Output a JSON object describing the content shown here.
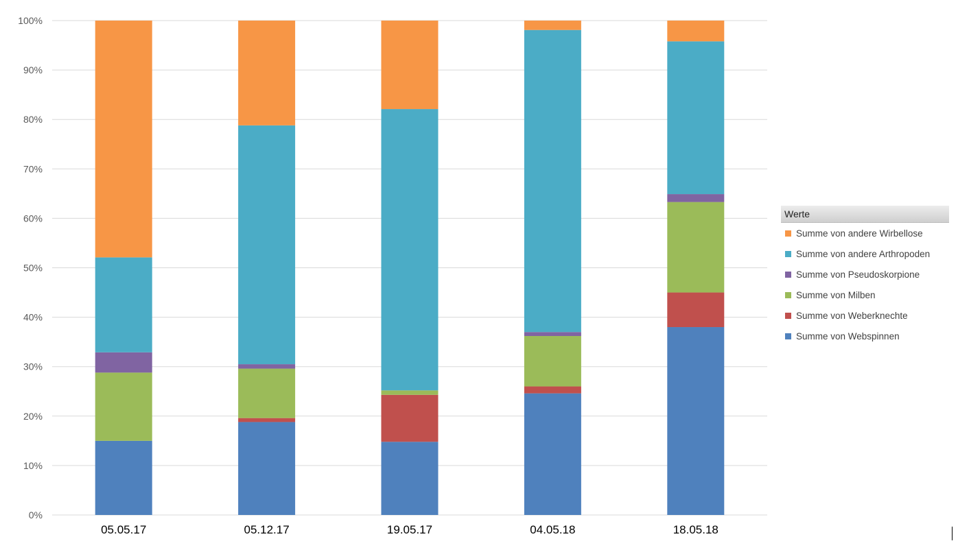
{
  "chart_data": {
    "type": "bar",
    "stacked": "percent",
    "categories": [
      "05.05.17",
      "05.12.17",
      "19.05.17",
      "04.05.18",
      "18.05.18"
    ],
    "y_ticks": [
      "0%",
      "10%",
      "20%",
      "30%",
      "40%",
      "50%",
      "60%",
      "70%",
      "80%",
      "90%",
      "100%"
    ],
    "ylim": [
      0,
      100
    ],
    "grid": true,
    "legend": {
      "title": "Werte",
      "placement": "right"
    },
    "series": [
      {
        "name": "Summe von Webspinnen",
        "color": "#4f81bd",
        "values": [
          15,
          18.8,
          14.8,
          24.6,
          38
        ]
      },
      {
        "name": "Summe von Weberknechte",
        "color": "#c0504d",
        "values": [
          0,
          0.8,
          9.5,
          1.4,
          7
        ]
      },
      {
        "name": "Summe von Milben",
        "color": "#9bbb59",
        "values": [
          13.8,
          10,
          0.9,
          10.2,
          18.3
        ]
      },
      {
        "name": "Summe von Pseudoskorpione",
        "color": "#8064a2",
        "values": [
          4.1,
          0.9,
          0,
          0.8,
          1.6
        ]
      },
      {
        "name": "Summe von andere Arthropoden",
        "color": "#4bacc6",
        "values": [
          19.2,
          48.3,
          56.9,
          61.1,
          30.9
        ]
      },
      {
        "name": "Summe von andere Wirbellose",
        "color": "#f79646",
        "values": [
          47.9,
          21.2,
          17.9,
          1.9,
          4.2
        ]
      }
    ]
  }
}
